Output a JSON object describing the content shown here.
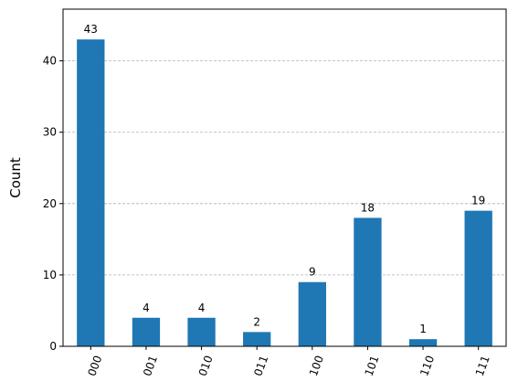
{
  "chart_data": {
    "type": "bar",
    "title": "",
    "xlabel": "",
    "ylabel": "Count",
    "categories": [
      "000",
      "001",
      "010",
      "011",
      "100",
      "101",
      "110",
      "111"
    ],
    "values": [
      43,
      4,
      4,
      2,
      9,
      18,
      1,
      19
    ],
    "ylim": [
      0,
      47.25
    ],
    "yticks": [
      0,
      10,
      20,
      30,
      40
    ],
    "x_tick_rotation_deg": 70,
    "grid": {
      "y": true,
      "x": false,
      "style": "dashed"
    },
    "legend": "none",
    "bar_color": "#1f77b4",
    "grid_color": "#b0b0b0"
  }
}
